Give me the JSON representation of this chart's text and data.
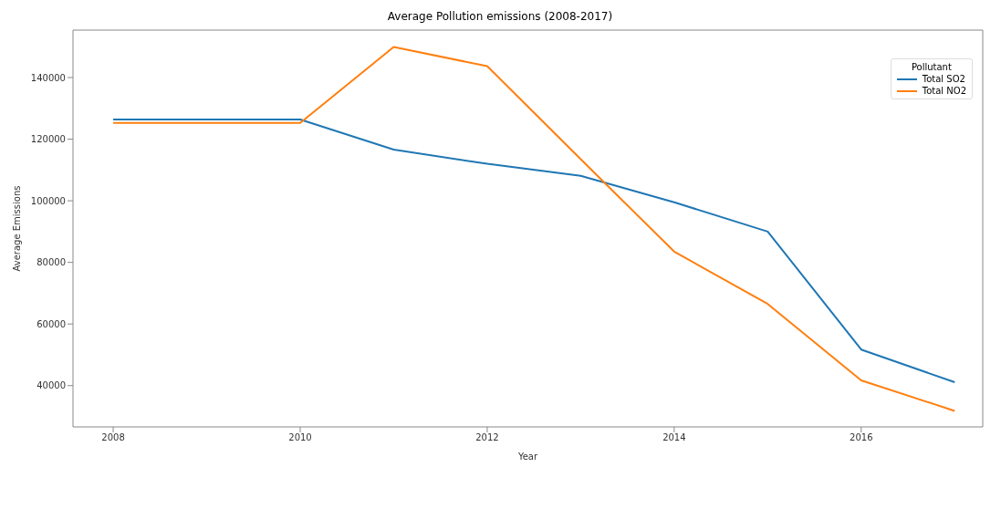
{
  "chart_data": {
    "type": "line",
    "title": "Average Pollution emissions (2008-2017)",
    "xlabel": "Year",
    "ylabel": "Average Emissions",
    "legend_title": "Pollutant",
    "x": [
      2008,
      2009,
      2010,
      2011,
      2012,
      2013,
      2014,
      2015,
      2016,
      2017
    ],
    "series": [
      {
        "name": "Total SO2",
        "color": "#1f77b4",
        "values": [
          126400,
          126400,
          126400,
          116600,
          112000,
          108100,
          99500,
          90000,
          51700,
          41100
        ]
      },
      {
        "name": "Total NO2",
        "color": "#ff7f0e",
        "values": [
          125300,
          125300,
          125300,
          149900,
          143700,
          113500,
          83500,
          66500,
          41700,
          31800
        ]
      }
    ],
    "xlim": [
      2007.57,
      2017.3
    ],
    "xticks": [
      2008,
      2010,
      2012,
      2014,
      2016
    ],
    "ylim": [
      26600,
      155400
    ],
    "yticks": [
      40000,
      60000,
      80000,
      100000,
      120000,
      140000
    ],
    "legend": "top right",
    "marker": "none",
    "line_style": "solid"
  }
}
